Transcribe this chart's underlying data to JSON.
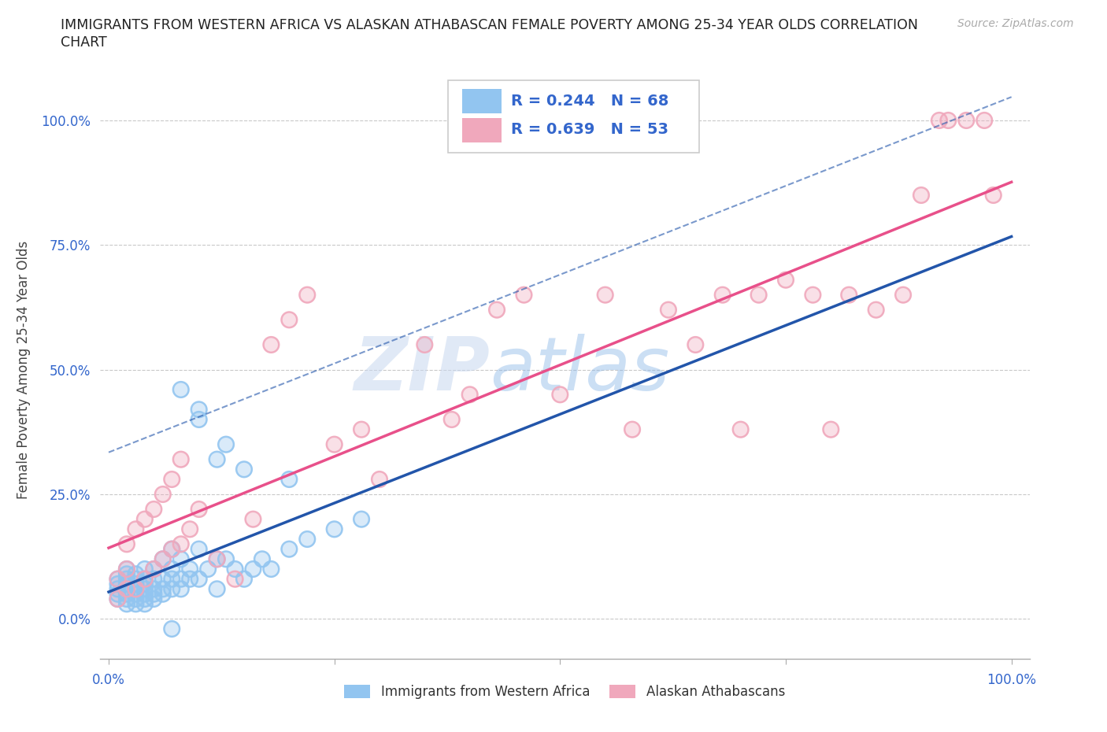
{
  "title_line1": "IMMIGRANTS FROM WESTERN AFRICA VS ALASKAN ATHABASCAN FEMALE POVERTY AMONG 25-34 YEAR OLDS CORRELATION",
  "title_line2": "CHART",
  "source": "Source: ZipAtlas.com",
  "ylabel": "Female Poverty Among 25-34 Year Olds",
  "xlabel": "",
  "xlim": [
    -0.01,
    1.02
  ],
  "ylim": [
    -0.08,
    1.08
  ],
  "yticks": [
    0.0,
    0.25,
    0.5,
    0.75,
    1.0
  ],
  "ytick_labels": [
    "0.0%",
    "25.0%",
    "50.0%",
    "75.0%",
    "100.0%"
  ],
  "xticks": [
    0.0,
    0.25,
    0.5,
    0.75,
    1.0
  ],
  "xtick_labels": [
    "0.0%",
    "",
    "",
    "",
    "100.0%"
  ],
  "blue_R": 0.244,
  "blue_N": 68,
  "pink_R": 0.639,
  "pink_N": 53,
  "blue_color": "#92C5F0",
  "pink_color": "#F0A8BC",
  "blue_line_color": "#2255AA",
  "pink_line_color": "#E8508A",
  "legend_text_color": "#3366CC",
  "background_color": "#FFFFFF",
  "grid_color": "#BBBBBB",
  "legend_label_blue": "Immigrants from Western Africa",
  "legend_label_pink": "Alaskan Athabascans",
  "blue_scatter_x": [
    0.01,
    0.01,
    0.01,
    0.01,
    0.01,
    0.02,
    0.02,
    0.02,
    0.02,
    0.02,
    0.02,
    0.02,
    0.02,
    0.03,
    0.03,
    0.03,
    0.03,
    0.03,
    0.03,
    0.03,
    0.04,
    0.04,
    0.04,
    0.04,
    0.04,
    0.04,
    0.04,
    0.05,
    0.05,
    0.05,
    0.05,
    0.05,
    0.06,
    0.06,
    0.06,
    0.06,
    0.07,
    0.07,
    0.07,
    0.07,
    0.08,
    0.08,
    0.08,
    0.09,
    0.09,
    0.1,
    0.1,
    0.11,
    0.12,
    0.12,
    0.13,
    0.14,
    0.15,
    0.16,
    0.17,
    0.18,
    0.2,
    0.22,
    0.25,
    0.28,
    0.1,
    0.13,
    0.15,
    0.08,
    0.1,
    0.12,
    0.2,
    0.07
  ],
  "blue_scatter_y": [
    0.04,
    0.05,
    0.06,
    0.07,
    0.08,
    0.03,
    0.04,
    0.05,
    0.06,
    0.07,
    0.08,
    0.09,
    0.1,
    0.03,
    0.04,
    0.05,
    0.06,
    0.07,
    0.08,
    0.09,
    0.03,
    0.04,
    0.05,
    0.06,
    0.07,
    0.08,
    0.1,
    0.04,
    0.05,
    0.06,
    0.08,
    0.1,
    0.05,
    0.06,
    0.08,
    0.12,
    0.06,
    0.08,
    0.1,
    0.14,
    0.06,
    0.08,
    0.12,
    0.08,
    0.1,
    0.08,
    0.14,
    0.1,
    0.06,
    0.12,
    0.12,
    0.1,
    0.08,
    0.1,
    0.12,
    0.1,
    0.14,
    0.16,
    0.18,
    0.2,
    0.42,
    0.35,
    0.3,
    0.46,
    0.4,
    0.32,
    0.28,
    -0.02
  ],
  "pink_scatter_x": [
    0.01,
    0.01,
    0.02,
    0.02,
    0.02,
    0.03,
    0.03,
    0.04,
    0.04,
    0.05,
    0.05,
    0.06,
    0.06,
    0.07,
    0.07,
    0.08,
    0.08,
    0.09,
    0.1,
    0.12,
    0.14,
    0.16,
    0.18,
    0.2,
    0.22,
    0.25,
    0.28,
    0.3,
    0.35,
    0.38,
    0.4,
    0.43,
    0.46,
    0.5,
    0.55,
    0.58,
    0.62,
    0.65,
    0.68,
    0.7,
    0.72,
    0.75,
    0.78,
    0.8,
    0.82,
    0.85,
    0.88,
    0.9,
    0.92,
    0.93,
    0.95,
    0.97,
    0.98
  ],
  "pink_scatter_y": [
    0.04,
    0.08,
    0.06,
    0.1,
    0.15,
    0.06,
    0.18,
    0.08,
    0.2,
    0.1,
    0.22,
    0.12,
    0.25,
    0.14,
    0.28,
    0.15,
    0.32,
    0.18,
    0.22,
    0.12,
    0.08,
    0.2,
    0.55,
    0.6,
    0.65,
    0.35,
    0.38,
    0.28,
    0.55,
    0.4,
    0.45,
    0.62,
    0.65,
    0.45,
    0.65,
    0.38,
    0.62,
    0.55,
    0.65,
    0.38,
    0.65,
    0.68,
    0.65,
    0.38,
    0.65,
    0.62,
    0.65,
    0.85,
    1.0,
    1.0,
    1.0,
    1.0,
    0.85
  ]
}
